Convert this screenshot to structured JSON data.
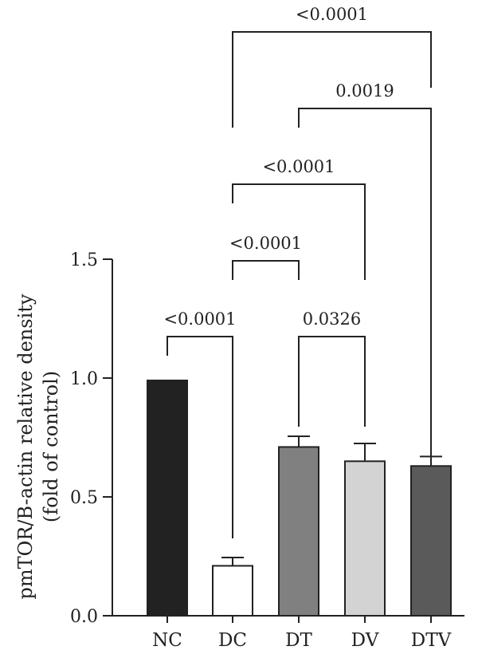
{
  "chart_data": {
    "type": "bar",
    "categories": [
      "NC",
      "DC",
      "DT",
      "DV",
      "DTV"
    ],
    "values": [
      0.99,
      0.21,
      0.71,
      0.65,
      0.63
    ],
    "errors": [
      0.0,
      0.035,
      0.045,
      0.075,
      0.04
    ],
    "bar_colors": [
      "#222222",
      "#ffffff",
      "#808080",
      "#d3d3d3",
      "#5a5a5a"
    ],
    "ylabel_line1": "pmTOR/B-actin relative density",
    "ylabel_line2": "(fold of control)",
    "ylim": [
      0,
      1.5
    ],
    "yticks": [
      0.0,
      0.5,
      1.0,
      1.5
    ],
    "ytick_labels": [
      "0.0",
      "0.5",
      "1.0",
      "1.5"
    ],
    "grid": false,
    "comparisons": [
      {
        "from": "NC",
        "to": "DC",
        "label": "<0.0001"
      },
      {
        "from": "DT",
        "to": "DV",
        "label": "0.0326"
      },
      {
        "from": "DC",
        "to": "DT",
        "label": "<0.0001"
      },
      {
        "from": "DC",
        "to": "DV",
        "label": "<0.0001"
      },
      {
        "from": "DT",
        "to": "DTV",
        "label": "0.0019"
      },
      {
        "from": "DC",
        "to": "DTV",
        "label": "<0.0001"
      }
    ]
  }
}
